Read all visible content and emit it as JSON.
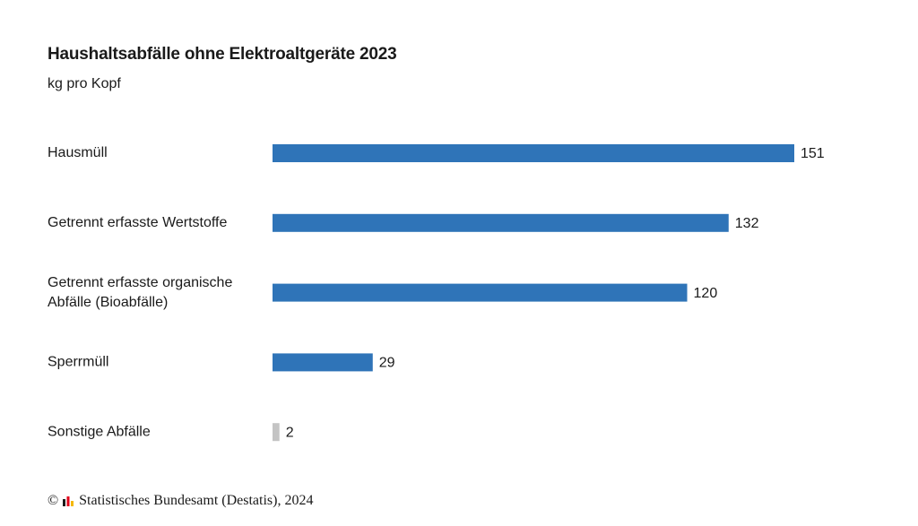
{
  "chart_data": {
    "type": "bar",
    "orientation": "horizontal",
    "title": "Haushaltsabfälle ohne Elektroaltgeräte 2023",
    "subtitle": "kg pro Kopf",
    "categories": [
      [
        "Hausmüll"
      ],
      [
        "Getrennt erfasste Wertstoffe"
      ],
      [
        "Getrennt erfasste organische",
        "Abfälle (Bioabfälle)"
      ],
      [
        "Sperrmüll"
      ],
      [
        "Sonstige Abfälle"
      ]
    ],
    "values": [
      151,
      132,
      120,
      29,
      2
    ],
    "value_labels": [
      "151",
      "132",
      "120",
      "29",
      "2"
    ],
    "bar_colors": [
      "#2f74b8",
      "#2f74b8",
      "#2f74b8",
      "#2f74b8",
      "#c4c4c4"
    ],
    "xlim": [
      0,
      151
    ],
    "grid": false,
    "legend": "none"
  },
  "footer": {
    "copyright": "©",
    "source": "Statistisches Bundesamt (Destatis), 2024",
    "logo_icon": "destatis-bar-logo-icon",
    "logo_colors": [
      "#1a1a1a",
      "#e2001a",
      "#f5b800"
    ]
  }
}
